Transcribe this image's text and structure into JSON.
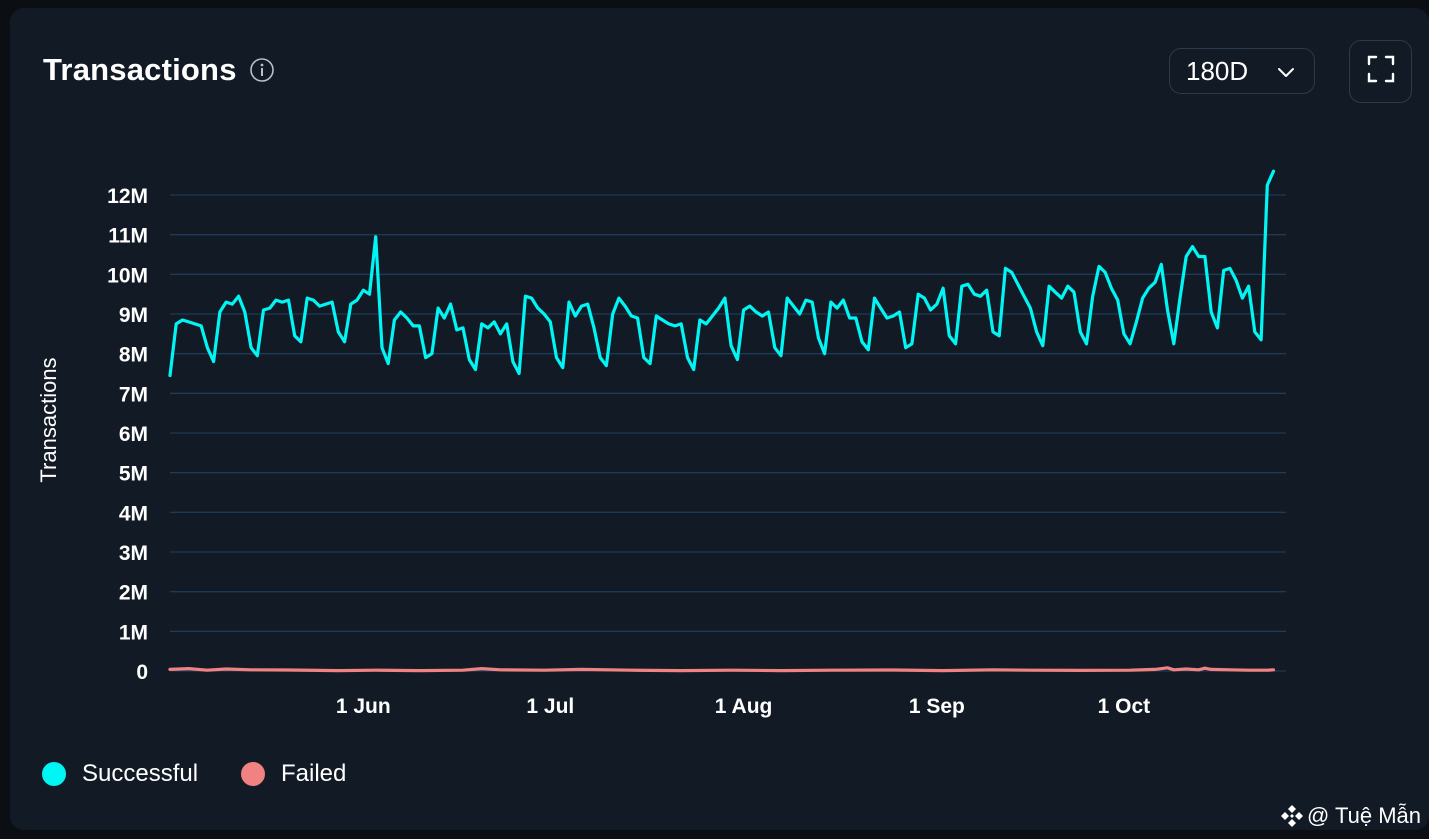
{
  "header": {
    "title": "Transactions",
    "info_icon": "info-circle-icon",
    "range_selected": "180D",
    "range_chevron_icon": "chevron-down-icon",
    "expand_icon": "fullscreen-icon"
  },
  "legend": {
    "items": [
      {
        "label": "Successful",
        "color": "#00f5f5"
      },
      {
        "label": "Failed",
        "color": "#f08282"
      }
    ]
  },
  "watermark": {
    "logo_icon": "binance-square-logo-icon",
    "text": "@ Tuệ Mẫn"
  },
  "colors": {
    "background": "#121b25",
    "grid": "#1d3a57",
    "successful": "#00f5f5",
    "failed": "#f08282"
  },
  "chart_data": {
    "type": "line",
    "title": "",
    "xlabel": "",
    "ylabel": "Transactions",
    "ylim": [
      0,
      12000000
    ],
    "y_ticks": [
      {
        "value": 0,
        "label": "0"
      },
      {
        "value": 1000000,
        "label": "1M"
      },
      {
        "value": 2000000,
        "label": "2M"
      },
      {
        "value": 3000000,
        "label": "3M"
      },
      {
        "value": 4000000,
        "label": "4M"
      },
      {
        "value": 5000000,
        "label": "5M"
      },
      {
        "value": 6000000,
        "label": "6M"
      },
      {
        "value": 7000000,
        "label": "7M"
      },
      {
        "value": 8000000,
        "label": "8M"
      },
      {
        "value": 9000000,
        "label": "9M"
      },
      {
        "value": 10000000,
        "label": "10M"
      },
      {
        "value": 11000000,
        "label": "11M"
      },
      {
        "value": 12000000,
        "label": "12M"
      }
    ],
    "x_start": "2024-05-01",
    "x_end": "2024-10-27",
    "x_ticks": [
      {
        "date": "2024-06-01",
        "label": "1 Jun"
      },
      {
        "date": "2024-07-01",
        "label": "1 Jul"
      },
      {
        "date": "2024-08-01",
        "label": "1 Aug"
      },
      {
        "date": "2024-09-01",
        "label": "1 Sep"
      },
      {
        "date": "2024-10-01",
        "label": "1 Oct"
      }
    ],
    "grid": true,
    "legend_position": "bottom-left",
    "series": [
      {
        "name": "Successful",
        "points": [
          [
            "2024-05-01",
            7450000
          ],
          [
            "2024-05-02",
            8750000
          ],
          [
            "2024-05-03",
            8850000
          ],
          [
            "2024-05-04",
            8800000
          ],
          [
            "2024-05-05",
            8750000
          ],
          [
            "2024-05-06",
            8700000
          ],
          [
            "2024-05-07",
            8150000
          ],
          [
            "2024-05-08",
            7800000
          ],
          [
            "2024-05-09",
            9050000
          ],
          [
            "2024-05-10",
            9300000
          ],
          [
            "2024-05-11",
            9250000
          ],
          [
            "2024-05-12",
            9450000
          ],
          [
            "2024-05-13",
            9050000
          ],
          [
            "2024-05-14",
            8150000
          ],
          [
            "2024-05-15",
            7950000
          ],
          [
            "2024-05-16",
            9100000
          ],
          [
            "2024-05-17",
            9150000
          ],
          [
            "2024-05-18",
            9350000
          ],
          [
            "2024-05-19",
            9300000
          ],
          [
            "2024-05-20",
            9350000
          ],
          [
            "2024-05-21",
            8450000
          ],
          [
            "2024-05-22",
            8300000
          ],
          [
            "2024-05-23",
            9400000
          ],
          [
            "2024-05-24",
            9350000
          ],
          [
            "2024-05-25",
            9200000
          ],
          [
            "2024-05-26",
            9250000
          ],
          [
            "2024-05-27",
            9300000
          ],
          [
            "2024-05-28",
            8550000
          ],
          [
            "2024-05-29",
            8300000
          ],
          [
            "2024-05-30",
            9250000
          ],
          [
            "2024-05-31",
            9350000
          ],
          [
            "2024-06-01",
            9600000
          ],
          [
            "2024-06-02",
            9500000
          ],
          [
            "2024-06-03",
            10950000
          ],
          [
            "2024-06-04",
            8150000
          ],
          [
            "2024-06-05",
            7750000
          ],
          [
            "2024-06-06",
            8850000
          ],
          [
            "2024-06-07",
            9050000
          ],
          [
            "2024-06-08",
            8900000
          ],
          [
            "2024-06-09",
            8700000
          ],
          [
            "2024-06-10",
            8700000
          ],
          [
            "2024-06-11",
            7900000
          ],
          [
            "2024-06-12",
            8000000
          ],
          [
            "2024-06-13",
            9150000
          ],
          [
            "2024-06-14",
            8900000
          ],
          [
            "2024-06-15",
            9250000
          ],
          [
            "2024-06-16",
            8600000
          ],
          [
            "2024-06-17",
            8650000
          ],
          [
            "2024-06-18",
            7850000
          ],
          [
            "2024-06-19",
            7600000
          ],
          [
            "2024-06-20",
            8750000
          ],
          [
            "2024-06-21",
            8650000
          ],
          [
            "2024-06-22",
            8800000
          ],
          [
            "2024-06-23",
            8500000
          ],
          [
            "2024-06-24",
            8750000
          ],
          [
            "2024-06-25",
            7800000
          ],
          [
            "2024-06-26",
            7500000
          ],
          [
            "2024-06-27",
            9450000
          ],
          [
            "2024-06-28",
            9400000
          ],
          [
            "2024-06-29",
            9150000
          ],
          [
            "2024-06-30",
            9000000
          ],
          [
            "2024-07-01",
            8800000
          ],
          [
            "2024-07-02",
            7900000
          ],
          [
            "2024-07-03",
            7650000
          ],
          [
            "2024-07-04",
            9300000
          ],
          [
            "2024-07-05",
            8950000
          ],
          [
            "2024-07-06",
            9200000
          ],
          [
            "2024-07-07",
            9250000
          ],
          [
            "2024-07-08",
            8650000
          ],
          [
            "2024-07-09",
            7900000
          ],
          [
            "2024-07-10",
            7700000
          ],
          [
            "2024-07-11",
            9000000
          ],
          [
            "2024-07-12",
            9400000
          ],
          [
            "2024-07-13",
            9200000
          ],
          [
            "2024-07-14",
            8950000
          ],
          [
            "2024-07-15",
            8900000
          ],
          [
            "2024-07-16",
            7900000
          ],
          [
            "2024-07-17",
            7750000
          ],
          [
            "2024-07-18",
            8950000
          ],
          [
            "2024-07-19",
            8850000
          ],
          [
            "2024-07-20",
            8750000
          ],
          [
            "2024-07-21",
            8700000
          ],
          [
            "2024-07-22",
            8750000
          ],
          [
            "2024-07-23",
            7900000
          ],
          [
            "2024-07-24",
            7600000
          ],
          [
            "2024-07-25",
            8850000
          ],
          [
            "2024-07-26",
            8750000
          ],
          [
            "2024-07-27",
            8950000
          ],
          [
            "2024-07-28",
            9150000
          ],
          [
            "2024-07-29",
            9400000
          ],
          [
            "2024-07-30",
            8200000
          ],
          [
            "2024-07-31",
            7850000
          ],
          [
            "2024-08-01",
            9100000
          ],
          [
            "2024-08-02",
            9200000
          ],
          [
            "2024-08-03",
            9050000
          ],
          [
            "2024-08-04",
            8950000
          ],
          [
            "2024-08-05",
            9050000
          ],
          [
            "2024-08-06",
            8150000
          ],
          [
            "2024-08-07",
            7950000
          ],
          [
            "2024-08-08",
            9400000
          ],
          [
            "2024-08-09",
            9200000
          ],
          [
            "2024-08-10",
            9000000
          ],
          [
            "2024-08-11",
            9350000
          ],
          [
            "2024-08-12",
            9300000
          ],
          [
            "2024-08-13",
            8400000
          ],
          [
            "2024-08-14",
            8000000
          ],
          [
            "2024-08-15",
            9300000
          ],
          [
            "2024-08-16",
            9150000
          ],
          [
            "2024-08-17",
            9350000
          ],
          [
            "2024-08-18",
            8900000
          ],
          [
            "2024-08-19",
            8900000
          ],
          [
            "2024-08-20",
            8300000
          ],
          [
            "2024-08-21",
            8100000
          ],
          [
            "2024-08-22",
            9400000
          ],
          [
            "2024-08-23",
            9150000
          ],
          [
            "2024-08-24",
            8900000
          ],
          [
            "2024-08-25",
            8950000
          ],
          [
            "2024-08-26",
            9050000
          ],
          [
            "2024-08-27",
            8150000
          ],
          [
            "2024-08-28",
            8250000
          ],
          [
            "2024-08-29",
            9500000
          ],
          [
            "2024-08-30",
            9400000
          ],
          [
            "2024-08-31",
            9100000
          ],
          [
            "2024-09-01",
            9250000
          ],
          [
            "2024-09-02",
            9650000
          ],
          [
            "2024-09-03",
            8450000
          ],
          [
            "2024-09-04",
            8250000
          ],
          [
            "2024-09-05",
            9700000
          ],
          [
            "2024-09-06",
            9750000
          ],
          [
            "2024-09-07",
            9500000
          ],
          [
            "2024-09-08",
            9450000
          ],
          [
            "2024-09-09",
            9600000
          ],
          [
            "2024-09-10",
            8550000
          ],
          [
            "2024-09-11",
            8450000
          ],
          [
            "2024-09-12",
            10150000
          ],
          [
            "2024-09-13",
            10050000
          ],
          [
            "2024-09-14",
            9750000
          ],
          [
            "2024-09-15",
            9450000
          ],
          [
            "2024-09-16",
            9150000
          ],
          [
            "2024-09-17",
            8550000
          ],
          [
            "2024-09-18",
            8200000
          ],
          [
            "2024-09-19",
            9700000
          ],
          [
            "2024-09-20",
            9550000
          ],
          [
            "2024-09-21",
            9400000
          ],
          [
            "2024-09-22",
            9700000
          ],
          [
            "2024-09-23",
            9550000
          ],
          [
            "2024-09-24",
            8550000
          ],
          [
            "2024-09-25",
            8250000
          ],
          [
            "2024-09-26",
            9450000
          ],
          [
            "2024-09-27",
            10200000
          ],
          [
            "2024-09-28",
            10050000
          ],
          [
            "2024-09-29",
            9650000
          ],
          [
            "2024-09-30",
            9350000
          ],
          [
            "2024-10-01",
            8500000
          ],
          [
            "2024-10-02",
            8250000
          ],
          [
            "2024-10-03",
            8800000
          ],
          [
            "2024-10-04",
            9400000
          ],
          [
            "2024-10-05",
            9650000
          ],
          [
            "2024-10-06",
            9800000
          ],
          [
            "2024-10-07",
            10250000
          ],
          [
            "2024-10-08",
            9100000
          ],
          [
            "2024-10-09",
            8250000
          ],
          [
            "2024-10-10",
            9400000
          ],
          [
            "2024-10-11",
            10450000
          ],
          [
            "2024-10-12",
            10700000
          ],
          [
            "2024-10-13",
            10450000
          ],
          [
            "2024-10-14",
            10450000
          ],
          [
            "2024-10-15",
            9050000
          ],
          [
            "2024-10-16",
            8650000
          ],
          [
            "2024-10-17",
            10100000
          ],
          [
            "2024-10-18",
            10150000
          ],
          [
            "2024-10-19",
            9850000
          ],
          [
            "2024-10-20",
            9400000
          ],
          [
            "2024-10-21",
            9700000
          ],
          [
            "2024-10-22",
            8550000
          ],
          [
            "2024-10-23",
            8350000
          ],
          [
            "2024-10-24",
            12250000
          ],
          [
            "2024-10-25",
            12600000
          ]
        ]
      },
      {
        "name": "Failed",
        "points": [
          [
            "2024-05-01",
            40000
          ],
          [
            "2024-05-04",
            60000
          ],
          [
            "2024-05-07",
            20000
          ],
          [
            "2024-05-10",
            50000
          ],
          [
            "2024-05-14",
            30000
          ],
          [
            "2024-05-20",
            25000
          ],
          [
            "2024-05-28",
            10000
          ],
          [
            "2024-06-03",
            20000
          ],
          [
            "2024-06-10",
            10000
          ],
          [
            "2024-06-17",
            20000
          ],
          [
            "2024-06-20",
            60000
          ],
          [
            "2024-06-23",
            30000
          ],
          [
            "2024-06-30",
            20000
          ],
          [
            "2024-07-06",
            40000
          ],
          [
            "2024-07-14",
            20000
          ],
          [
            "2024-07-22",
            10000
          ],
          [
            "2024-07-30",
            20000
          ],
          [
            "2024-08-07",
            10000
          ],
          [
            "2024-08-15",
            20000
          ],
          [
            "2024-08-25",
            25000
          ],
          [
            "2024-09-02",
            10000
          ],
          [
            "2024-09-10",
            30000
          ],
          [
            "2024-09-16",
            20000
          ],
          [
            "2024-09-24",
            15000
          ],
          [
            "2024-10-02",
            20000
          ],
          [
            "2024-10-06",
            40000
          ],
          [
            "2024-10-08",
            80000
          ],
          [
            "2024-10-09",
            30000
          ],
          [
            "2024-10-11",
            50000
          ],
          [
            "2024-10-13",
            30000
          ],
          [
            "2024-10-14",
            70000
          ],
          [
            "2024-10-15",
            40000
          ],
          [
            "2024-10-18",
            30000
          ],
          [
            "2024-10-21",
            20000
          ],
          [
            "2024-10-24",
            20000
          ],
          [
            "2024-10-25",
            30000
          ]
        ]
      }
    ]
  }
}
